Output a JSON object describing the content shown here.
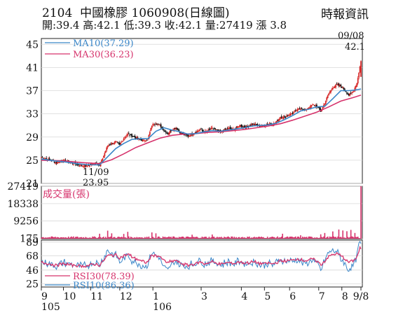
{
  "header": {
    "stock_code": "2104",
    "stock_name": "中國橡膠",
    "date": "1060908",
    "chart_kind": "(日線圖)",
    "source": "時報資訊",
    "ohlc_line": "開:39.4 高:42.1 低:39.3 收:42.1 量:27419 漲 3.8"
  },
  "chart_data": [
    {
      "type": "candlestick",
      "panel": "price",
      "yticks": [
        45,
        41,
        37,
        33,
        29,
        25,
        21
      ],
      "ylim": [
        21,
        46
      ],
      "series": [
        {
          "name": "MA10",
          "value_label": "(37.29)",
          "color": "#3a86c8"
        },
        {
          "name": "MA30",
          "value_label": "(36.23)",
          "color": "#d6336c"
        }
      ],
      "annotations": [
        {
          "text": "09/08",
          "value": "42.1"
        },
        {
          "text": "11/09",
          "value": "23.95"
        }
      ],
      "close_path": [
        [
          0,
          25.5
        ],
        [
          5,
          25.3
        ],
        [
          10,
          24.9
        ],
        [
          15,
          24.6
        ],
        [
          20,
          25.0
        ],
        [
          25,
          24.8
        ],
        [
          30,
          24.5
        ],
        [
          35,
          24.3
        ],
        [
          40,
          24.1
        ],
        [
          45,
          24.0
        ],
        [
          50,
          24.3
        ],
        [
          55,
          24.6
        ],
        [
          58,
          24.0
        ],
        [
          62,
          25.8
        ],
        [
          66,
          27.5
        ],
        [
          70,
          27.9
        ],
        [
          74,
          28.2
        ],
        [
          78,
          27.6
        ],
        [
          82,
          28.8
        ],
        [
          86,
          29.5
        ],
        [
          90,
          29.2
        ],
        [
          94,
          28.9
        ],
        [
          98,
          28.6
        ],
        [
          102,
          28.4
        ],
        [
          106,
          28.7
        ],
        [
          110,
          31.0
        ],
        [
          114,
          31.4
        ],
        [
          118,
          31.0
        ],
        [
          122,
          30.2
        ],
        [
          126,
          29.6
        ],
        [
          130,
          30.3
        ],
        [
          134,
          30.6
        ],
        [
          138,
          29.8
        ],
        [
          142,
          29.4
        ],
        [
          146,
          29.2
        ],
        [
          150,
          29.6
        ],
        [
          154,
          29.9
        ],
        [
          158,
          30.3
        ],
        [
          162,
          29.9
        ],
        [
          166,
          30.1
        ],
        [
          170,
          30.5
        ],
        [
          174,
          30.2
        ],
        [
          178,
          29.8
        ],
        [
          182,
          30.2
        ],
        [
          186,
          30.5
        ],
        [
          190,
          30.3
        ],
        [
          194,
          30.6
        ],
        [
          198,
          31.0
        ],
        [
          202,
          30.7
        ],
        [
          206,
          30.9
        ],
        [
          210,
          31.2
        ],
        [
          214,
          31.1
        ],
        [
          218,
          30.9
        ],
        [
          222,
          31.0
        ],
        [
          226,
          31.3
        ],
        [
          230,
          31.2
        ],
        [
          234,
          31.6
        ],
        [
          238,
          32.5
        ],
        [
          242,
          32.4
        ],
        [
          246,
          32.9
        ],
        [
          250,
          33.1
        ],
        [
          254,
          33.6
        ],
        [
          258,
          34.0
        ],
        [
          262,
          33.6
        ],
        [
          266,
          34.1
        ],
        [
          270,
          34.6
        ],
        [
          274,
          34.3
        ],
        [
          278,
          33.4
        ],
        [
          282,
          34.9
        ],
        [
          286,
          36.5
        ],
        [
          290,
          37.6
        ],
        [
          294,
          38.0
        ],
        [
          298,
          37.8
        ],
        [
          302,
          37.1
        ],
        [
          306,
          36.2
        ],
        [
          310,
          36.8
        ],
        [
          314,
          38.3
        ],
        [
          318,
          42.1
        ]
      ],
      "ma10_path": [
        [
          0,
          25.2
        ],
        [
          12,
          24.9
        ],
        [
          24,
          24.7
        ],
        [
          36,
          24.4
        ],
        [
          48,
          24.2
        ],
        [
          58,
          24.2
        ],
        [
          66,
          25.6
        ],
        [
          74,
          27.0
        ],
        [
          82,
          27.9
        ],
        [
          90,
          28.6
        ],
        [
          98,
          28.7
        ],
        [
          106,
          28.7
        ],
        [
          114,
          30.0
        ],
        [
          122,
          30.6
        ],
        [
          130,
          30.2
        ],
        [
          138,
          29.9
        ],
        [
          146,
          29.5
        ],
        [
          154,
          29.6
        ],
        [
          162,
          29.9
        ],
        [
          170,
          30.1
        ],
        [
          178,
          30.0
        ],
        [
          186,
          30.2
        ],
        [
          194,
          30.4
        ],
        [
          202,
          30.6
        ],
        [
          210,
          30.9
        ],
        [
          218,
          31.0
        ],
        [
          226,
          31.1
        ],
        [
          234,
          31.4
        ],
        [
          242,
          32.0
        ],
        [
          250,
          32.7
        ],
        [
          258,
          33.5
        ],
        [
          266,
          33.8
        ],
        [
          274,
          34.2
        ],
        [
          282,
          34.3
        ],
        [
          290,
          35.6
        ],
        [
          298,
          37.0
        ],
        [
          306,
          37.0
        ],
        [
          312,
          37.1
        ],
        [
          318,
          37.29
        ]
      ],
      "ma30_path": [
        [
          0,
          25.0
        ],
        [
          20,
          24.9
        ],
        [
          40,
          24.6
        ],
        [
          58,
          24.4
        ],
        [
          70,
          25.1
        ],
        [
          82,
          26.1
        ],
        [
          94,
          27.2
        ],
        [
          106,
          28.0
        ],
        [
          118,
          28.8
        ],
        [
          130,
          29.3
        ],
        [
          142,
          29.5
        ],
        [
          154,
          29.6
        ],
        [
          166,
          29.8
        ],
        [
          178,
          29.9
        ],
        [
          190,
          30.1
        ],
        [
          202,
          30.3
        ],
        [
          214,
          30.6
        ],
        [
          226,
          30.9
        ],
        [
          238,
          31.3
        ],
        [
          250,
          31.9
        ],
        [
          262,
          32.6
        ],
        [
          274,
          33.3
        ],
        [
          286,
          34.2
        ],
        [
          298,
          35.2
        ],
        [
          310,
          35.8
        ],
        [
          318,
          36.23
        ]
      ]
    },
    {
      "type": "bar",
      "panel": "volume",
      "title": "成交量(張)",
      "yticks": [
        27419,
        18338,
        9256,
        175
      ],
      "ylim": [
        0,
        27419
      ],
      "last_value": 27419
    },
    {
      "type": "line",
      "panel": "rsi",
      "yticks": [
        89,
        68,
        46,
        25
      ],
      "ylim": [
        20,
        92
      ],
      "series": [
        {
          "name": "RSI30",
          "value_label": "(78.39)",
          "color": "#d6336c",
          "last": 78.39
        },
        {
          "name": "RSI10",
          "value_label": "(86.36)",
          "color": "#3a86c8",
          "last": 86.36
        }
      ]
    }
  ],
  "x_axis": {
    "ticks": [
      {
        "label": "9",
        "at": 0
      },
      {
        "label": "10",
        "at": 22
      },
      {
        "label": "11",
        "at": 49
      },
      {
        "label": "12",
        "at": 78
      },
      {
        "label": "1",
        "at": 111
      },
      {
        "label": "3",
        "at": 159
      },
      {
        "label": "4",
        "at": 199
      },
      {
        "label": "5",
        "at": 222
      },
      {
        "label": "6",
        "at": 247
      },
      {
        "label": "7",
        "at": 276
      },
      {
        "label": "8",
        "at": 299
      },
      {
        "label": "9/8",
        "at": 318
      }
    ],
    "year_labels": [
      {
        "label": "105",
        "at": 0
      },
      {
        "label": "106",
        "at": 111
      }
    ]
  },
  "colors": {
    "up": "#d62828",
    "down": "#111111",
    "volume": "#d6336c",
    "ma10": "#3a86c8",
    "ma30": "#d6336c"
  }
}
